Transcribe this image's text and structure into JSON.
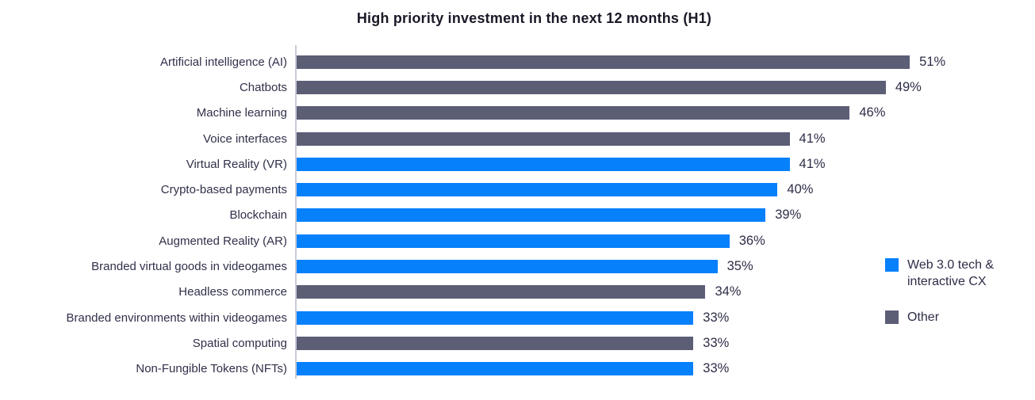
{
  "chart_data": {
    "type": "bar",
    "orientation": "horizontal",
    "title": "High priority investment in the next 12 months (H1)",
    "categories": [
      "Artificial intelligence (AI)",
      "Chatbots",
      "Machine learning",
      "Voice interfaces",
      "Virtual Reality (VR)",
      "Crypto-based payments",
      "Blockchain",
      "Augmented Reality (AR)",
      "Branded virtual goods in videogames",
      "Headless commerce",
      "Branded environments within videogames",
      "Spatial computing",
      "Non-Fungible Tokens (NFTs)"
    ],
    "values": [
      51,
      49,
      46,
      41,
      41,
      40,
      39,
      36,
      35,
      34,
      33,
      33,
      33
    ],
    "value_labels": [
      "51%",
      "49%",
      "46%",
      "41%",
      "41%",
      "40%",
      "39%",
      "36%",
      "35%",
      "34%",
      "33%",
      "33%",
      "33%"
    ],
    "series_of_bar": [
      1,
      1,
      1,
      1,
      0,
      0,
      0,
      0,
      0,
      1,
      0,
      1,
      0
    ],
    "legend": [
      {
        "label": "Web 3.0 tech & interactive CX",
        "color": "#0780fc"
      },
      {
        "label": "Other",
        "color": "#5c5e76"
      }
    ],
    "legend_position": "right",
    "unit": "%",
    "xlim": [
      0,
      52
    ],
    "grid": false,
    "axis_line_color": "#c9cbd6"
  }
}
